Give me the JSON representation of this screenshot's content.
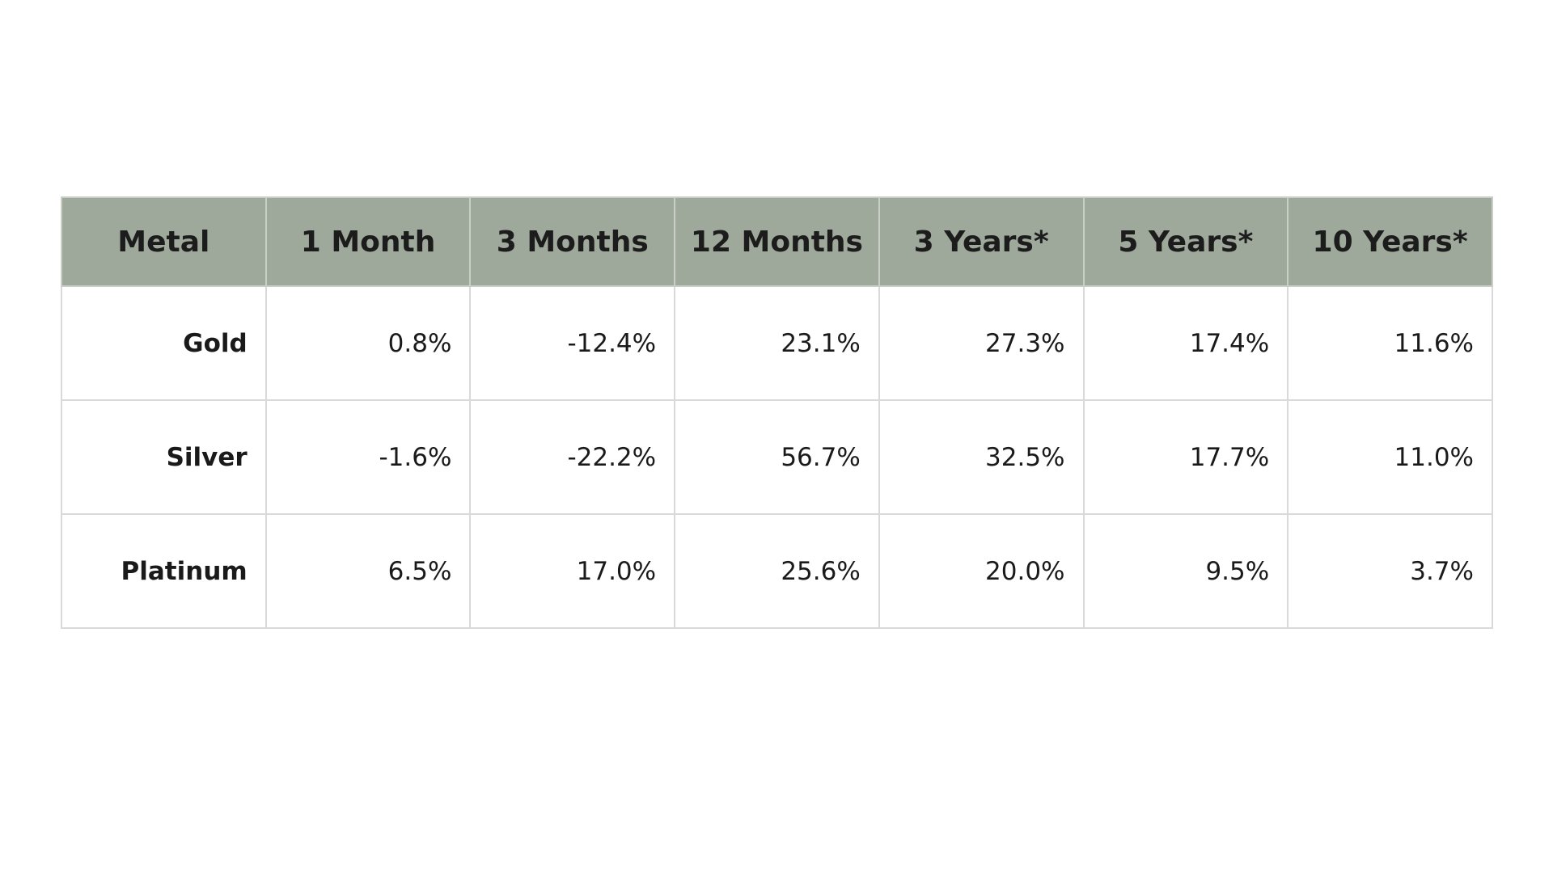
{
  "table": {
    "columns": [
      "Metal",
      "1 Month",
      "3 Months",
      "12 Months",
      "3 Years*",
      "5 Years*",
      "10 Years*"
    ],
    "rows": [
      [
        "Gold",
        "0.8%",
        "-12.4%",
        "23.1%",
        "27.3%",
        "17.4%",
        "11.6%"
      ],
      [
        "Silver",
        "-1.6%",
        "-22.2%",
        "56.7%",
        "32.5%",
        "17.7%",
        "11.0%"
      ],
      [
        "Platinum",
        "6.5%",
        "17.0%",
        "25.6%",
        "20.0%",
        "9.5%",
        "3.7%"
      ]
    ]
  }
}
